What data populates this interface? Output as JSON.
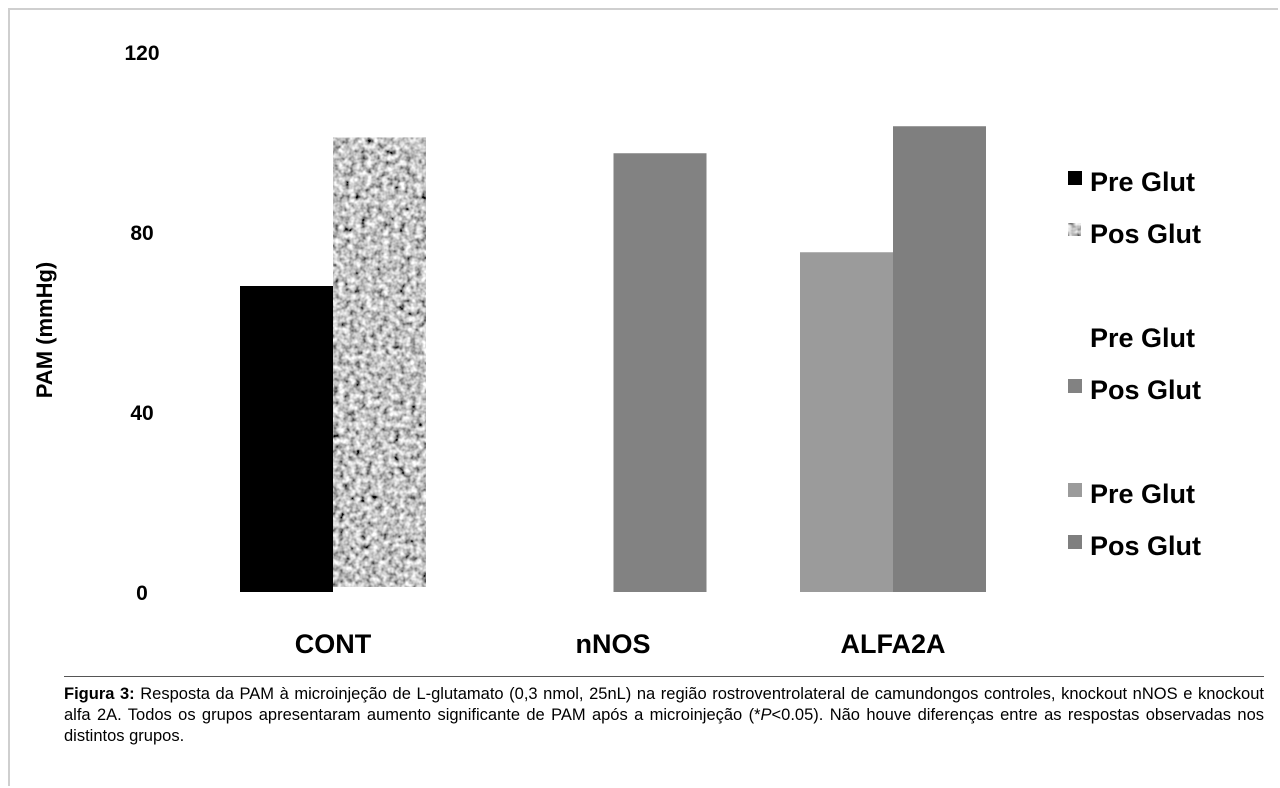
{
  "chart_data": {
    "type": "bar",
    "ylabel": "PAM (mmHg)",
    "xlabel": "",
    "ylim": [
      0,
      120
    ],
    "yticks": [
      "0",
      "40",
      "80",
      "120"
    ],
    "grid": false,
    "legend_position": "right",
    "groups": [
      {
        "category": "CONT",
        "bars": [
          {
            "series": "Pre Glut",
            "value": 68,
            "color": "#000000",
            "pattern": "solid"
          },
          {
            "series": "Pos Glut",
            "value": 101,
            "color": "#9a9a9a",
            "pattern": "speckled"
          }
        ]
      },
      {
        "category": "nNOS",
        "bars": [
          {
            "series": "Pos Glut",
            "value": 97.5,
            "color": "#828282",
            "pattern": "solid"
          }
        ]
      },
      {
        "category": "ALFA2A",
        "bars": [
          {
            "series": "Pre Glut",
            "value": 75.5,
            "color": "#9b9b9b",
            "pattern": "solid"
          },
          {
            "series": "Pos Glut",
            "value": 103.5,
            "color": "#7f7f7f",
            "pattern": "solid"
          }
        ]
      }
    ],
    "legend": [
      {
        "label": "Pre Glut",
        "color": "#000000",
        "pattern": "solid"
      },
      {
        "label": "Pos Glut",
        "color": "#9a9a9a",
        "pattern": "speckled"
      },
      {
        "label": "Pre Glut",
        "color": "#ffffff",
        "pattern": "solid"
      },
      {
        "label": "Pos Glut",
        "color": "#828282",
        "pattern": "solid"
      },
      {
        "label": "Pre Glut",
        "color": "#9b9b9b",
        "pattern": "solid"
      },
      {
        "label": "Pos Glut",
        "color": "#7f7f7f",
        "pattern": "solid"
      }
    ]
  },
  "caption": {
    "label": "Figura 3:",
    "text_1": " Resposta da PAM à microinjeção de L-glutamato (0,3 nmol, 25nL) na região rostroventrolateral de camundongos controles, knockout nNOS e knockout alfa 2A. Todos os grupos apresentaram aumento significante de PAM após a microinjeção (*",
    "p_symbol": "P",
    "text_2": "<0.05). Não houve diferenças entre as respostas observadas nos distintos grupos."
  }
}
